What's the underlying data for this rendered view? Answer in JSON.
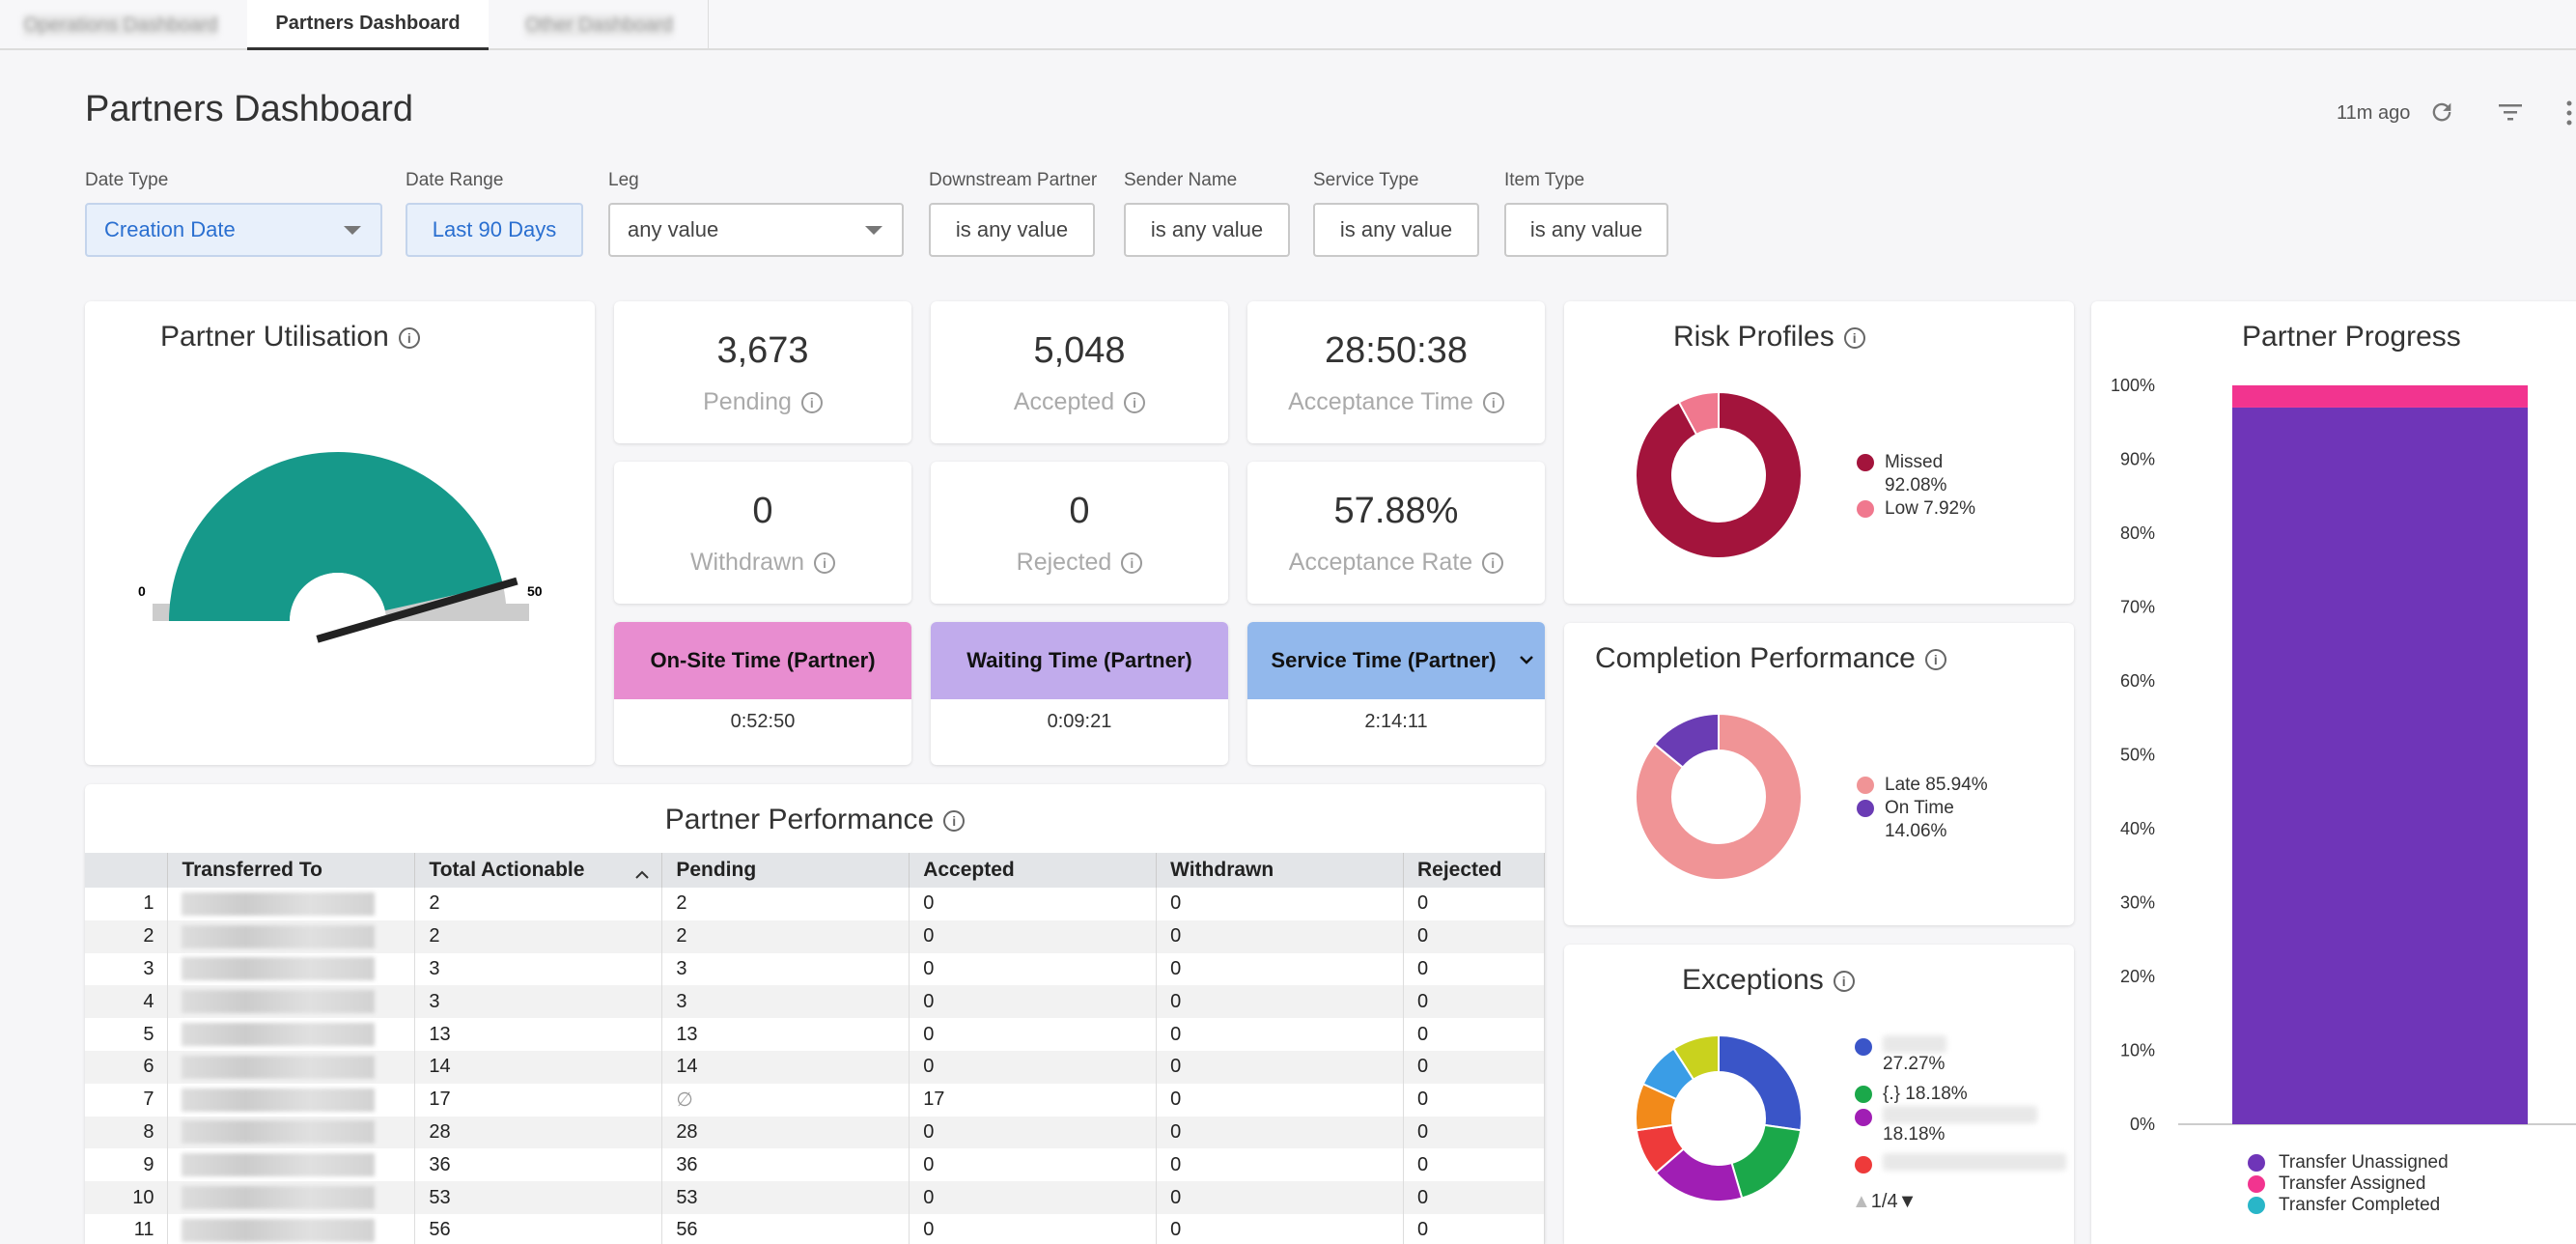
{
  "tabs": [
    {
      "label": "Operations Dashboard",
      "active": false
    },
    {
      "label": "Partners Dashboard",
      "active": true
    },
    {
      "label": "Other Dashboard",
      "active": false
    }
  ],
  "page_title": "Partners Dashboard",
  "toolbar": {
    "updated": "11m ago",
    "refresh_icon": "refresh-icon",
    "filter_icon": "filter-icon",
    "more_icon": "more-vert-icon"
  },
  "filters": [
    {
      "label": "Date Type",
      "value": "Creation Date"
    },
    {
      "label": "Date Range",
      "value": "Last 90 Days"
    },
    {
      "label": "Leg",
      "value": "any value"
    },
    {
      "label": "Downstream Partner",
      "value": "is any value"
    },
    {
      "label": "Sender Name",
      "value": "is any value"
    },
    {
      "label": "Service Type",
      "value": "is any value"
    },
    {
      "label": "Item Type",
      "value": "is any value"
    }
  ],
  "utilisation": {
    "title": "Partner Utilisation",
    "min": "0",
    "max": "50",
    "value_fraction": 0.93,
    "colors": {
      "fill": "#16998a",
      "track": "#cccccc",
      "needle": "#222222"
    }
  },
  "kpis": {
    "pending": {
      "value": "3,673",
      "label": "Pending"
    },
    "accepted": {
      "value": "5,048",
      "label": "Accepted"
    },
    "acceptance_time": {
      "value": "28:50:38",
      "label": "Acceptance Time"
    },
    "withdrawn": {
      "value": "0",
      "label": "Withdrawn"
    },
    "rejected": {
      "value": "0",
      "label": "Rejected"
    },
    "acceptance_rate": {
      "value": "57.88%",
      "label": "Acceptance Rate"
    }
  },
  "time_cards": {
    "onsite": {
      "label": "On-Site Time (Partner)",
      "value": "0:52:50",
      "color": "#e88dd0"
    },
    "waiting": {
      "label": "Waiting Time (Partner)",
      "value": "0:09:21",
      "color": "#c1abec"
    },
    "service": {
      "label": "Service Time (Partner)",
      "value": "2:14:11",
      "color": "#92b8ec"
    }
  },
  "performance": {
    "title": "Partner Performance",
    "columns": [
      "Transferred To",
      "Total Actionable",
      "Pending",
      "Accepted",
      "Withdrawn",
      "Rejected"
    ],
    "rows": [
      [
        "1",
        "",
        "2",
        "2",
        "0",
        "0",
        "0"
      ],
      [
        "2",
        "",
        "2",
        "2",
        "0",
        "0",
        "0"
      ],
      [
        "3",
        "",
        "3",
        "3",
        "0",
        "0",
        "0"
      ],
      [
        "4",
        "",
        "3",
        "3",
        "0",
        "0",
        "0"
      ],
      [
        "5",
        "",
        "13",
        "13",
        "0",
        "0",
        "0"
      ],
      [
        "6",
        "",
        "14",
        "14",
        "0",
        "0",
        "0"
      ],
      [
        "7",
        "",
        "17",
        "∅",
        "17",
        "0",
        "0"
      ],
      [
        "8",
        "",
        "28",
        "28",
        "0",
        "0",
        "0"
      ],
      [
        "9",
        "",
        "36",
        "36",
        "0",
        "0",
        "0"
      ],
      [
        "10",
        "",
        "53",
        "53",
        "0",
        "0",
        "0"
      ],
      [
        "11",
        "",
        "56",
        "56",
        "0",
        "0",
        "0"
      ]
    ]
  },
  "risk": {
    "title": "Risk Profiles",
    "chart_data": {
      "type": "pie",
      "categories": [
        "Missed",
        "Low"
      ],
      "values": [
        92.08,
        7.92
      ],
      "colors": [
        "#a3143c",
        "#f0788e"
      ]
    },
    "legend": [
      {
        "line1": "Missed",
        "line2": "92.08%"
      },
      {
        "line1": "Low 7.92%",
        "line2": ""
      }
    ]
  },
  "completion": {
    "title": "Completion Performance",
    "chart_data": {
      "type": "pie",
      "categories": [
        "Late",
        "On Time"
      ],
      "values": [
        85.94,
        14.06
      ],
      "colors": [
        "#f09496",
        "#6a3cb4"
      ]
    },
    "legend": [
      {
        "line1": "Late 85.94%",
        "line2": ""
      },
      {
        "line1": "On Time",
        "line2": "14.06%"
      }
    ]
  },
  "exceptions": {
    "title": "Exceptions",
    "chart_data": {
      "type": "pie",
      "values": [
        27.27,
        18.18,
        18.18,
        9.09,
        9.09,
        9.09,
        9.09
      ],
      "colors": [
        "#3a55c8",
        "#1ba84a",
        "#a01eb4",
        "#ee3a3a",
        "#f28a1a",
        "#3a9de6",
        "#c9d21e"
      ]
    },
    "legend": [
      {
        "line1": "",
        "line2": "27.27%"
      },
      {
        "line1": "{.} 18.18%",
        "line2": ""
      },
      {
        "line1": "",
        "line2": "18.18%"
      },
      {
        "line1": "",
        "line2": ""
      }
    ],
    "pager": "1/4"
  },
  "progress": {
    "title": "Partner Progress",
    "chart_data": {
      "type": "bar",
      "categories": [
        ""
      ],
      "series": [
        {
          "name": "Transfer Unassigned",
          "values": [
            97
          ],
          "color": "#6f35b8"
        },
        {
          "name": "Transfer Assigned",
          "values": [
            3
          ],
          "color": "#f2348f"
        },
        {
          "name": "Transfer Completed",
          "values": [
            0
          ],
          "color": "#29b6c8"
        }
      ],
      "ylim": [
        0,
        100
      ],
      "ticks": [
        "0%",
        "10%",
        "20%",
        "30%",
        "40%",
        "50%",
        "60%",
        "70%",
        "80%",
        "90%",
        "100%"
      ]
    }
  }
}
